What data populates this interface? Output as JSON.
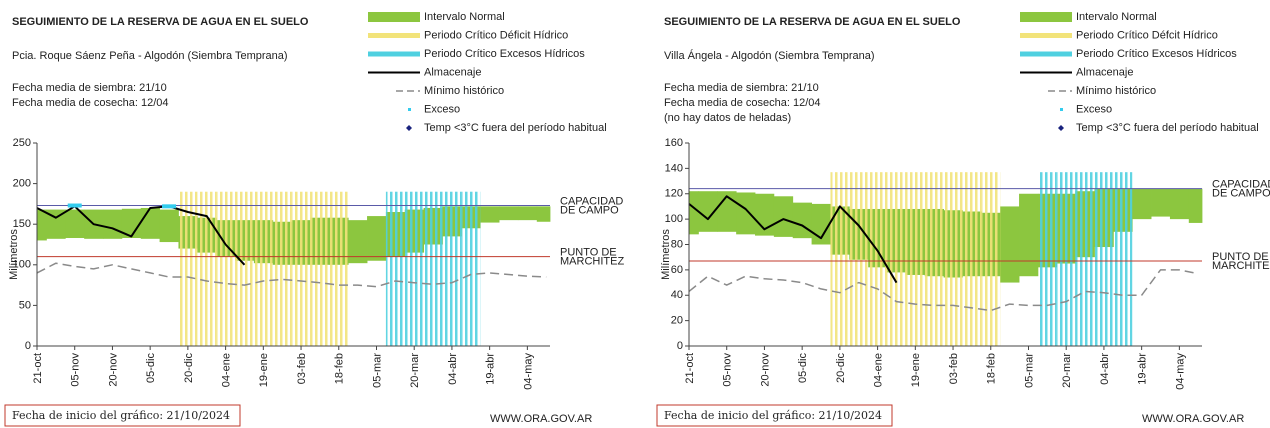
{
  "chart_data": [
    {
      "type": "line",
      "title": "SEGUIMIENTO DE LA RESERVA DE AGUA EN EL SUELO",
      "subtitle": "Pcia. Roque Sáenz Peña - Algodón (Siembra Temprana)",
      "notes": [
        "Fecha media de siembra: 21/10",
        "Fecha media de cosecha: 12/04"
      ],
      "y_label": "Milímetros",
      "footer": "Fecha de inicio del gráfico:  21/10/2024",
      "source": "WWW.ORA.GOV.AR",
      "ylim": [
        0,
        250
      ],
      "yticks": [
        0,
        50,
        100,
        150,
        200,
        250
      ],
      "categories": [
        "21-oct",
        null,
        "05-nov",
        null,
        "20-nov",
        null,
        "05-dic",
        null,
        "20-dic",
        null,
        "04-ene",
        null,
        "19-ene",
        null,
        "03-feb",
        null,
        "18-feb",
        null,
        "05-mar",
        null,
        "20-mar",
        null,
        "04-abr",
        null,
        "19-abr",
        null,
        "04-may",
        null
      ],
      "reference_lines": [
        {
          "value": 173,
          "label": [
            "CAPACIDAD",
            "DE CAMPO"
          ],
          "color": "#5a5aa8"
        },
        {
          "value": 110,
          "label": [
            "PUNTO  DE",
            "MARCHITEZ"
          ],
          "color": "#c0392b"
        }
      ],
      "series": [
        {
          "name": "Intervalo Normal",
          "style": "band",
          "color": "#8cc63f",
          "values": [
            168,
            168,
            168,
            168,
            168,
            169,
            170,
            168,
            160,
            158,
            155,
            155,
            155,
            153,
            155,
            158,
            158,
            155,
            160,
            165,
            168,
            170,
            172,
            172,
            172,
            172,
            172,
            172
          ],
          "lower": [
            130,
            132,
            133,
            132,
            132,
            133,
            132,
            128,
            120,
            115,
            110,
            105,
            102,
            100,
            100,
            100,
            100,
            102,
            105,
            110,
            115,
            125,
            135,
            145,
            152,
            155,
            155,
            153
          ]
        },
        {
          "name": "Periodo Crítico Déficit Hídrico",
          "style": "stripes",
          "color": "#f2e37a",
          "values": [
            null,
            null,
            null,
            null,
            null,
            null,
            null,
            null,
            190,
            190,
            190,
            190,
            190,
            190,
            190,
            190,
            190,
            null,
            null,
            null,
            null,
            null,
            null,
            null,
            null,
            null,
            null,
            null
          ]
        },
        {
          "name": "Periodo Crítico Excesos Hídricos",
          "style": "stripes",
          "color": "#4fd0e0",
          "values": [
            null,
            null,
            null,
            null,
            null,
            null,
            null,
            null,
            null,
            null,
            null,
            null,
            null,
            null,
            null,
            null,
            null,
            null,
            null,
            190,
            190,
            190,
            190,
            190,
            null,
            null,
            null,
            null
          ]
        },
        {
          "name": "Almacenaje",
          "style": "line",
          "color": "#000000",
          "values": [
            170,
            158,
            172,
            150,
            145,
            135,
            170,
            172,
            165,
            160,
            125,
            100,
            null,
            null,
            null,
            null,
            null,
            null,
            null,
            null,
            null,
            null,
            null,
            null,
            null,
            null,
            null,
            null
          ]
        },
        {
          "name": "Mínimo histórico",
          "style": "dashed",
          "color": "#8a8a8a",
          "values": [
            90,
            102,
            98,
            95,
            100,
            95,
            90,
            85,
            85,
            80,
            77,
            75,
            80,
            82,
            80,
            78,
            75,
            75,
            73,
            80,
            78,
            76,
            78,
            88,
            90,
            88,
            86,
            85
          ]
        },
        {
          "name": "Exceso",
          "style": "points",
          "color": "#33ccee",
          "values": [
            null,
            null,
            173,
            null,
            null,
            null,
            null,
            172,
            null,
            null,
            null,
            null,
            null,
            null,
            null,
            null,
            null,
            null,
            null,
            null,
            null,
            null,
            null,
            null,
            null,
            null,
            null,
            null
          ]
        },
        {
          "name": "Temp <3°C fuera del período habitual",
          "style": "diamonds",
          "color": "#1a237e",
          "values": [
            null,
            null,
            null,
            null,
            null,
            null,
            null,
            null,
            null,
            null,
            null,
            null,
            null,
            null,
            null,
            null,
            null,
            null,
            null,
            null,
            null,
            null,
            null,
            null,
            null,
            null,
            null,
            null
          ]
        }
      ]
    },
    {
      "type": "line",
      "title": "SEGUIMIENTO DE LA RESERVA DE AGUA EN EL SUELO",
      "subtitle": "Villa Ángela - Algodón (Siembra Temprana)",
      "notes": [
        "Fecha media de siembra: 21/10",
        "Fecha media de cosecha: 12/04",
        "(no hay datos de heladas)"
      ],
      "y_label": "Milímetros",
      "footer": "Fecha de inicio del gráfico:  21/10/2024",
      "source": "WWW.ORA.GOV.AR",
      "ylim": [
        0,
        160
      ],
      "yticks": [
        0,
        20,
        40,
        60,
        80,
        100,
        120,
        140,
        160
      ],
      "categories": [
        "21-oct",
        null,
        "05-nov",
        null,
        "20-nov",
        null,
        "05-dic",
        null,
        "20-dic",
        null,
        "04-ene",
        null,
        "19-ene",
        null,
        "03-feb",
        null,
        "18-feb",
        null,
        "05-mar",
        null,
        "20-mar",
        null,
        "04-abr",
        null,
        "19-abr",
        null,
        "04-may",
        null
      ],
      "reference_lines": [
        {
          "value": 124,
          "label": [
            "CAPACIDAD",
            "DE CAMPO"
          ],
          "color": "#5a5aa8"
        },
        {
          "value": 67,
          "label": [
            "PUNTO  DE",
            "MARCHITEZ"
          ],
          "color": "#c0392b"
        }
      ],
      "series": [
        {
          "name": "Intervalo Normal",
          "style": "band",
          "color": "#8cc63f",
          "values": [
            122,
            122,
            122,
            121,
            120,
            118,
            113,
            112,
            110,
            108,
            108,
            108,
            108,
            108,
            107,
            106,
            105,
            110,
            120,
            120,
            120,
            122,
            124,
            124,
            124,
            124,
            124,
            124
          ],
          "lower": [
            88,
            90,
            90,
            88,
            87,
            86,
            85,
            80,
            72,
            68,
            62,
            58,
            56,
            55,
            54,
            55,
            55,
            50,
            55,
            62,
            65,
            70,
            78,
            90,
            100,
            102,
            100,
            97
          ]
        },
        {
          "name": "Periodo Crítico Défcit Hídrico",
          "style": "stripes",
          "color": "#f2e37a",
          "values": [
            null,
            null,
            null,
            null,
            null,
            null,
            null,
            null,
            137,
            137,
            137,
            137,
            137,
            137,
            137,
            137,
            137,
            null,
            null,
            null,
            null,
            null,
            null,
            null,
            null,
            null,
            null,
            null
          ]
        },
        {
          "name": "Periodo Crítico Excesos Hídricos",
          "style": "stripes",
          "color": "#4fd0e0",
          "values": [
            null,
            null,
            null,
            null,
            null,
            null,
            null,
            null,
            null,
            null,
            null,
            null,
            null,
            null,
            null,
            null,
            null,
            null,
            null,
            137,
            137,
            137,
            137,
            137,
            null,
            null,
            null,
            null
          ]
        },
        {
          "name": "Almacenaje",
          "style": "line",
          "color": "#000000",
          "values": [
            112,
            100,
            118,
            108,
            92,
            100,
            95,
            85,
            110,
            95,
            75,
            50,
            null,
            null,
            null,
            null,
            null,
            null,
            null,
            null,
            null,
            null,
            null,
            null,
            null,
            null,
            null,
            null
          ]
        },
        {
          "name": "Mínimo histórico",
          "style": "dashed",
          "color": "#8a8a8a",
          "values": [
            43,
            55,
            48,
            55,
            53,
            52,
            50,
            45,
            42,
            50,
            45,
            35,
            33,
            32,
            32,
            30,
            28,
            33,
            32,
            32,
            35,
            43,
            42,
            40,
            40,
            60,
            60,
            57
          ]
        },
        {
          "name": "Exceso",
          "style": "points",
          "color": "#33ccee",
          "values": [
            null,
            null,
            null,
            null,
            null,
            null,
            null,
            null,
            null,
            null,
            null,
            null,
            null,
            null,
            null,
            null,
            null,
            null,
            null,
            null,
            null,
            null,
            null,
            null,
            null,
            null,
            null,
            null
          ]
        },
        {
          "name": "Temp <3°C fuera del período habitual",
          "style": "diamonds",
          "color": "#1a237e",
          "values": [
            null,
            null,
            null,
            null,
            null,
            null,
            null,
            null,
            null,
            null,
            null,
            null,
            null,
            null,
            null,
            null,
            null,
            null,
            null,
            null,
            null,
            null,
            null,
            null,
            null,
            null,
            null,
            null
          ]
        }
      ]
    }
  ]
}
